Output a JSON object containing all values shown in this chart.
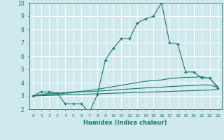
{
  "background_color": "#cfe9ec",
  "grid_color": "#ffffff",
  "line_color": "#1a7a6e",
  "xlabel": "Humidex (Indice chaleur)",
  "xlim": [
    -0.5,
    23.5
  ],
  "ylim": [
    2,
    10
  ],
  "xticks": [
    0,
    1,
    2,
    3,
    4,
    5,
    6,
    7,
    8,
    9,
    10,
    11,
    12,
    13,
    14,
    15,
    16,
    17,
    18,
    19,
    20,
    21,
    22,
    23
  ],
  "yticks": [
    2,
    3,
    4,
    5,
    6,
    7,
    8,
    9,
    10
  ],
  "series": [
    {
      "x": [
        0,
        1,
        2,
        3,
        4,
        5,
        6,
        7,
        8,
        9,
        10,
        11,
        12,
        13,
        14,
        15,
        16,
        17,
        18,
        19,
        20,
        21,
        22,
        23
      ],
      "y": [
        3.0,
        3.3,
        3.3,
        3.2,
        2.4,
        2.4,
        2.4,
        1.75,
        3.1,
        5.7,
        6.6,
        7.3,
        7.3,
        8.5,
        8.8,
        9.0,
        10.0,
        7.0,
        6.9,
        4.8,
        4.8,
        4.35,
        4.35,
        3.6
      ],
      "marker": "+"
    },
    {
      "x": [
        0,
        1,
        2,
        3,
        4,
        5,
        6,
        7,
        8,
        9,
        10,
        11,
        12,
        13,
        14,
        15,
        16,
        17,
        18,
        19,
        20,
        21,
        22,
        23
      ],
      "y": [
        3.0,
        3.1,
        3.2,
        3.2,
        3.25,
        3.3,
        3.35,
        3.4,
        3.5,
        3.6,
        3.7,
        3.8,
        3.9,
        4.0,
        4.1,
        4.15,
        4.2,
        4.3,
        4.35,
        4.4,
        4.4,
        4.45,
        4.3,
        3.7
      ],
      "marker": null
    },
    {
      "x": [
        0,
        1,
        2,
        3,
        4,
        5,
        6,
        7,
        8,
        9,
        10,
        11,
        12,
        13,
        14,
        15,
        16,
        17,
        18,
        19,
        20,
        21,
        22,
        23
      ],
      "y": [
        3.0,
        3.05,
        3.1,
        3.15,
        3.2,
        3.25,
        3.3,
        3.33,
        3.36,
        3.4,
        3.44,
        3.48,
        3.52,
        3.56,
        3.6,
        3.63,
        3.66,
        3.7,
        3.73,
        3.76,
        3.79,
        3.82,
        3.82,
        3.65
      ],
      "marker": null
    },
    {
      "x": [
        0,
        1,
        2,
        3,
        4,
        5,
        6,
        7,
        8,
        9,
        10,
        11,
        12,
        13,
        14,
        15,
        16,
        17,
        18,
        19,
        20,
        21,
        22,
        23
      ],
      "y": [
        3.0,
        3.02,
        3.04,
        3.06,
        3.08,
        3.1,
        3.12,
        3.14,
        3.16,
        3.18,
        3.2,
        3.22,
        3.24,
        3.26,
        3.28,
        3.3,
        3.32,
        3.34,
        3.36,
        3.38,
        3.4,
        3.42,
        3.44,
        3.5
      ],
      "marker": null
    }
  ]
}
